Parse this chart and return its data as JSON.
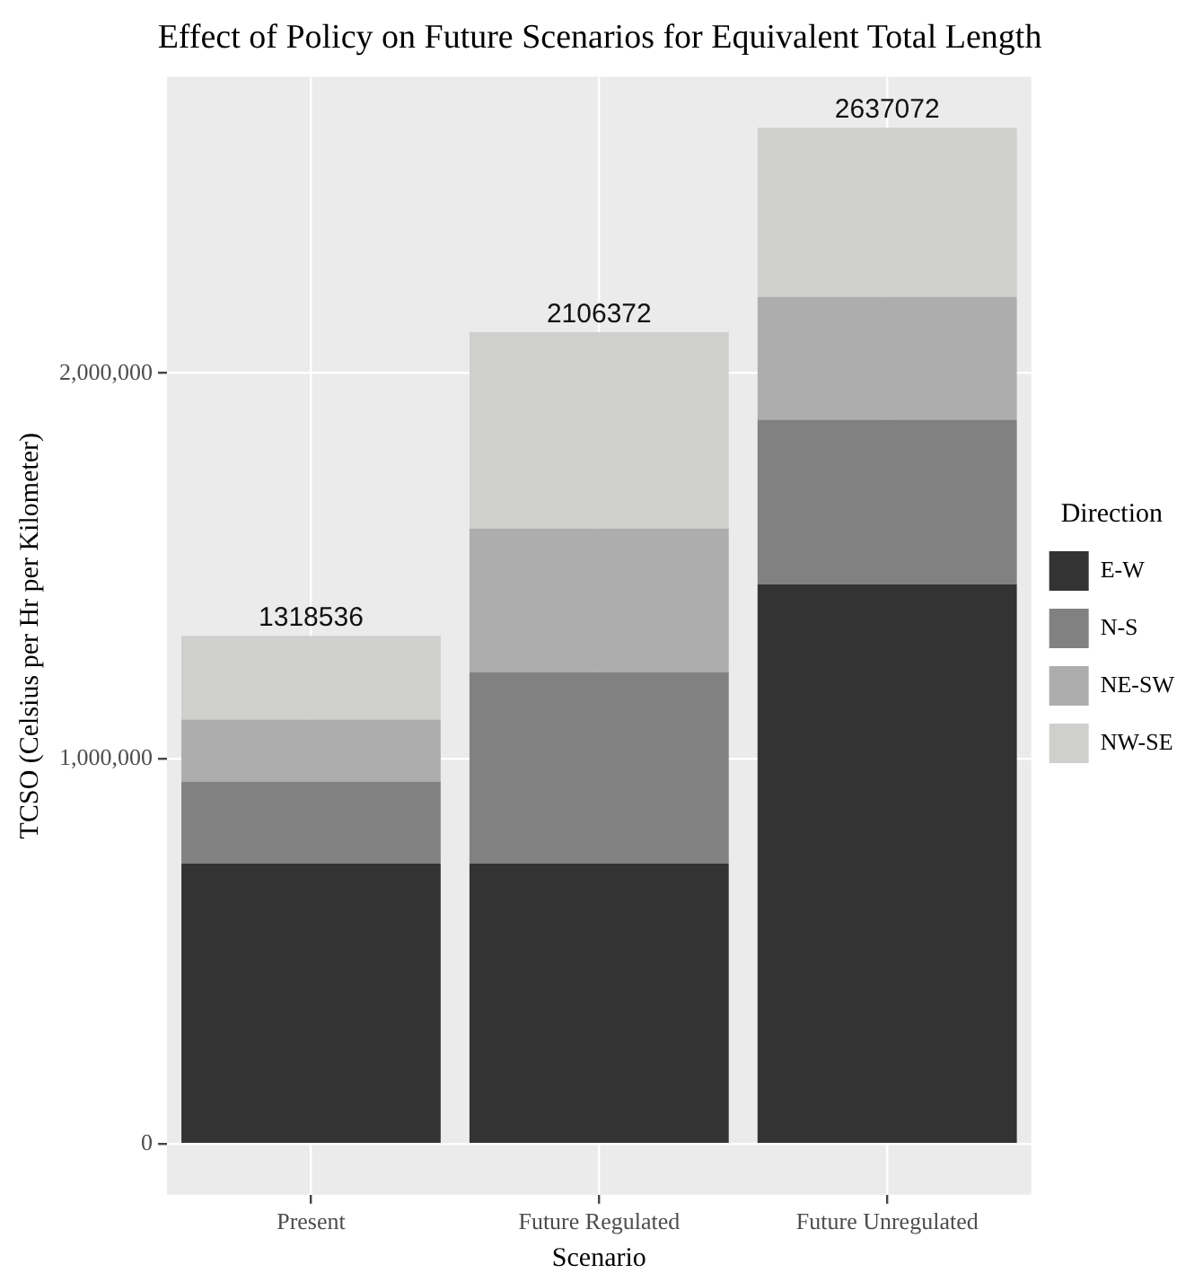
{
  "chart_data": {
    "type": "bar",
    "title": "Effect of Policy on Future Scenarios for Equivalent Total Length",
    "xlabel": "Scenario",
    "ylabel": "TCSO (Celsius per Hr per Kilometer)",
    "legend_title": "Direction",
    "categories": [
      "Present",
      "Future Regulated",
      "Future Unregulated"
    ],
    "series": [
      {
        "name": "E-W",
        "color": "#333333",
        "values": [
          728000,
          728000,
          1452000
        ]
      },
      {
        "name": "N-S",
        "color": "#808180",
        "values": [
          211000,
          496000,
          427000
        ]
      },
      {
        "name": "NE-SW",
        "color": "#acadac",
        "values": [
          162000,
          373000,
          319000
        ]
      },
      {
        "name": "NW-SE",
        "color": "#cfcfce",
        "values": [
          217536,
          509372,
          439072
        ]
      }
    ],
    "stacked": true,
    "totals": [
      "1318536",
      "2106372",
      "2637072"
    ],
    "ylim": [
      -131854,
      2768926
    ],
    "yticks": [
      0,
      {
        "value": 1000000,
        "label": "1,000,000"
      },
      {
        "value": 2000000,
        "label": "2,000,000"
      }
    ],
    "grid": true,
    "legend": "right"
  }
}
